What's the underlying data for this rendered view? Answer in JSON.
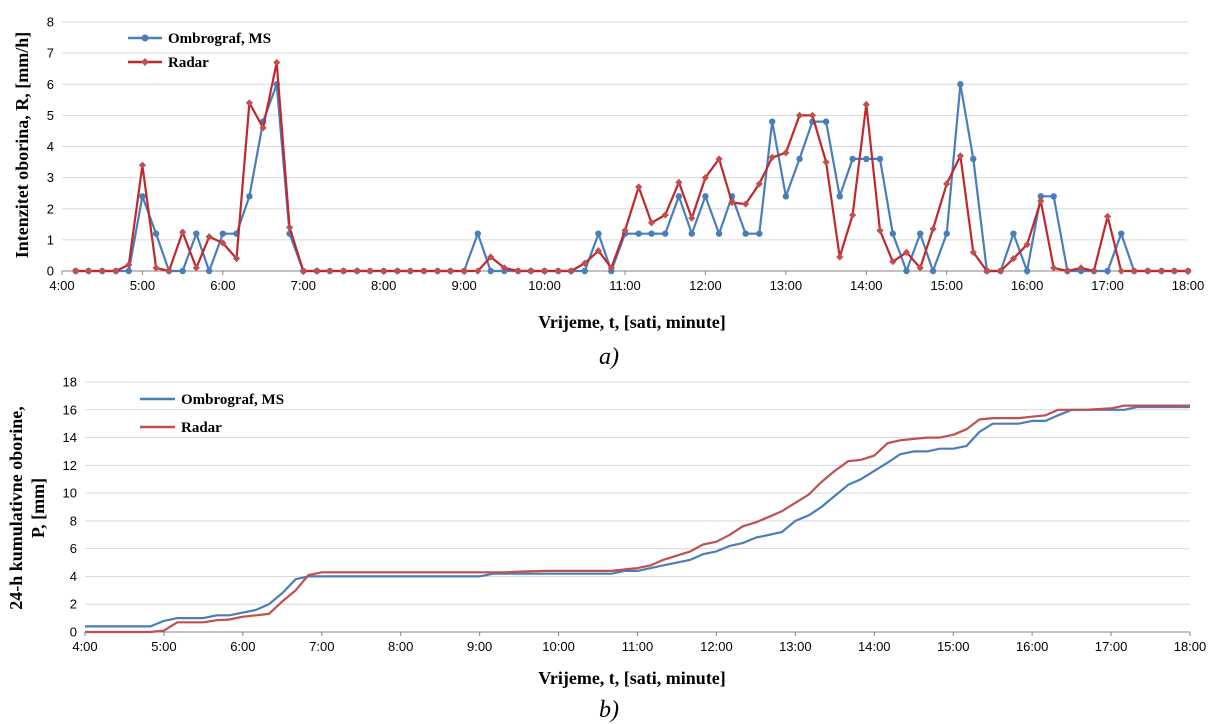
{
  "chart_data": [
    {
      "type": "line",
      "panel_label": "a)",
      "xlabel": "Vrijeme, t, [sati, minute]",
      "ylabel": "Intenzitet oborina, R, [mm/h]",
      "ylim": [
        0,
        8
      ],
      "y_ticks": [
        "0",
        "1",
        "2",
        "3",
        "4",
        "5",
        "6",
        "7",
        "8"
      ],
      "x_ticks": [
        "4:00",
        "5:00",
        "6:00",
        "7:00",
        "8:00",
        "9:00",
        "10:00",
        "11:00",
        "12:00",
        "13:00",
        "14:00",
        "15:00",
        "16:00",
        "17:00",
        "18:00"
      ],
      "grid": "horizontal",
      "legend_position": "top-left",
      "x_hours": [
        4.17,
        4.33,
        4.5,
        4.67,
        4.83,
        5,
        5.17,
        5.33,
        5.5,
        5.67,
        5.83,
        6,
        6.17,
        6.33,
        6.5,
        6.67,
        6.83,
        7,
        7.17,
        7.33,
        7.5,
        7.67,
        7.83,
        8,
        8.17,
        8.33,
        8.5,
        8.67,
        8.83,
        9,
        9.17,
        9.33,
        9.5,
        9.67,
        9.83,
        10,
        10.17,
        10.33,
        10.5,
        10.67,
        10.83,
        11,
        11.17,
        11.33,
        11.5,
        11.67,
        11.83,
        12,
        12.17,
        12.33,
        12.5,
        12.67,
        12.83,
        13,
        13.17,
        13.33,
        13.5,
        13.67,
        13.83,
        14,
        14.17,
        14.33,
        14.5,
        14.67,
        14.83,
        15,
        15.17,
        15.33,
        15.5,
        15.67,
        15.83,
        16,
        16.17,
        16.33,
        16.5,
        16.67,
        16.83,
        17,
        17.17,
        17.33,
        17.5,
        17.67,
        17.83,
        18
      ],
      "series": [
        {
          "name": "Ombrograf, MS",
          "color": "#4A7EBB",
          "marker": "circle",
          "values": [
            0,
            0,
            0,
            0,
            0,
            2.4,
            1.2,
            0,
            0,
            1.2,
            0,
            1.2,
            1.2,
            2.4,
            4.8,
            6,
            1.2,
            0,
            0,
            0,
            0,
            0,
            0,
            0,
            0,
            0,
            0,
            0,
            0,
            0,
            1.2,
            0,
            0,
            0,
            0,
            0,
            0,
            0,
            0,
            1.2,
            0,
            1.2,
            1.2,
            1.2,
            1.2,
            2.4,
            1.2,
            2.4,
            1.2,
            2.4,
            1.2,
            1.2,
            4.8,
            2.4,
            3.6,
            4.8,
            4.8,
            2.4,
            3.6,
            3.6,
            3.6,
            1.2,
            0,
            1.2,
            0,
            1.2,
            6,
            3.6,
            0,
            0,
            1.2,
            0,
            2.4,
            2.4,
            0,
            0,
            0,
            0,
            1.2,
            0,
            0,
            0,
            0,
            0
          ]
        },
        {
          "name": "Radar",
          "color": "#C0282D",
          "marker": "diamond",
          "values": [
            0,
            0,
            0,
            0,
            0.2,
            3.4,
            0.1,
            0,
            1.25,
            0.1,
            1.1,
            0.9,
            0.4,
            5.4,
            4.6,
            6.7,
            1.4,
            0,
            0,
            0,
            0,
            0,
            0,
            0,
            0,
            0,
            0,
            0,
            0,
            0,
            0,
            0.45,
            0.1,
            0,
            0,
            0,
            0,
            0,
            0.25,
            0.65,
            0.1,
            1.3,
            2.7,
            1.55,
            1.8,
            2.85,
            1.7,
            3.0,
            3.6,
            2.2,
            2.15,
            2.8,
            3.65,
            3.8,
            5.0,
            5.0,
            3.5,
            0.45,
            1.8,
            5.35,
            1.3,
            0.3,
            0.6,
            0.1,
            1.35,
            2.8,
            3.7,
            0.6,
            0,
            0,
            0.4,
            0.85,
            2.25,
            0.1,
            0,
            0.1,
            0,
            1.75,
            0,
            0,
            0,
            0,
            0,
            0
          ]
        }
      ]
    },
    {
      "type": "line",
      "panel_label": "b)",
      "xlabel": "Vrijeme, t, [sati, minute]",
      "ylabel": "24-h kumulativne oborine, P, [mm]",
      "ylabel_lines": [
        "24-h kumulativne oborine,",
        "P, [mm]"
      ],
      "ylim": [
        0,
        18
      ],
      "y_ticks": [
        "0",
        "2",
        "4",
        "6",
        "8",
        "10",
        "12",
        "14",
        "16",
        "18"
      ],
      "x_ticks": [
        "4:00",
        "5:00",
        "6:00",
        "7:00",
        "8:00",
        "9:00",
        "10:00",
        "11:00",
        "12:00",
        "13:00",
        "14:00",
        "15:00",
        "16:00",
        "17:00",
        "18:00"
      ],
      "grid": "horizontal",
      "legend_position": "top-left",
      "series": [
        {
          "name": "Ombrograf, MS",
          "color": "#4A7EBB",
          "points": [
            [
              4,
              0.4
            ],
            [
              4.83,
              0.4
            ],
            [
              5,
              0.8
            ],
            [
              5.17,
              1.0
            ],
            [
              5.5,
              1.0
            ],
            [
              5.67,
              1.2
            ],
            [
              5.83,
              1.2
            ],
            [
              6,
              1.4
            ],
            [
              6.17,
              1.6
            ],
            [
              6.33,
              2.0
            ],
            [
              6.5,
              2.8
            ],
            [
              6.67,
              3.8
            ],
            [
              6.83,
              4.0
            ],
            [
              7,
              4.0
            ],
            [
              9,
              4.0
            ],
            [
              9.17,
              4.2
            ],
            [
              10.67,
              4.2
            ],
            [
              10.83,
              4.4
            ],
            [
              11,
              4.4
            ],
            [
              11.17,
              4.6
            ],
            [
              11.33,
              4.8
            ],
            [
              11.5,
              5.0
            ],
            [
              11.67,
              5.2
            ],
            [
              11.83,
              5.6
            ],
            [
              12,
              5.8
            ],
            [
              12.17,
              6.2
            ],
            [
              12.33,
              6.4
            ],
            [
              12.5,
              6.8
            ],
            [
              12.67,
              7.0
            ],
            [
              12.83,
              7.2
            ],
            [
              13,
              8.0
            ],
            [
              13.17,
              8.4
            ],
            [
              13.33,
              9.0
            ],
            [
              13.5,
              9.8
            ],
            [
              13.67,
              10.6
            ],
            [
              13.83,
              11.0
            ],
            [
              14,
              11.6
            ],
            [
              14.17,
              12.2
            ],
            [
              14.33,
              12.8
            ],
            [
              14.5,
              13.0
            ],
            [
              14.67,
              13.0
            ],
            [
              14.83,
              13.2
            ],
            [
              15,
              13.2
            ],
            [
              15.17,
              13.4
            ],
            [
              15.33,
              14.4
            ],
            [
              15.5,
              15.0
            ],
            [
              15.83,
              15.0
            ],
            [
              16,
              15.2
            ],
            [
              16.17,
              15.2
            ],
            [
              16.33,
              15.6
            ],
            [
              16.5,
              16.0
            ],
            [
              17.17,
              16.0
            ],
            [
              17.33,
              16.2
            ],
            [
              18,
              16.2
            ]
          ]
        },
        {
          "name": "Radar",
          "color": "#C0504D",
          "points": [
            [
              4,
              0
            ],
            [
              4.83,
              0
            ],
            [
              5,
              0.1
            ],
            [
              5.17,
              0.7
            ],
            [
              5.5,
              0.7
            ],
            [
              5.67,
              0.85
            ],
            [
              5.83,
              0.9
            ],
            [
              6,
              1.1
            ],
            [
              6.17,
              1.2
            ],
            [
              6.33,
              1.3
            ],
            [
              6.5,
              2.2
            ],
            [
              6.67,
              3.0
            ],
            [
              6.83,
              4.1
            ],
            [
              7,
              4.3
            ],
            [
              9,
              4.3
            ],
            [
              9.33,
              4.3
            ],
            [
              9.5,
              4.35
            ],
            [
              9.83,
              4.4
            ],
            [
              10.67,
              4.4
            ],
            [
              10.83,
              4.5
            ],
            [
              11,
              4.6
            ],
            [
              11.17,
              4.8
            ],
            [
              11.33,
              5.2
            ],
            [
              11.5,
              5.5
            ],
            [
              11.67,
              5.8
            ],
            [
              11.83,
              6.3
            ],
            [
              12,
              6.5
            ],
            [
              12.17,
              7.0
            ],
            [
              12.33,
              7.6
            ],
            [
              12.5,
              7.9
            ],
            [
              12.67,
              8.3
            ],
            [
              12.83,
              8.7
            ],
            [
              13,
              9.3
            ],
            [
              13.17,
              9.9
            ],
            [
              13.33,
              10.8
            ],
            [
              13.5,
              11.6
            ],
            [
              13.67,
              12.3
            ],
            [
              13.83,
              12.4
            ],
            [
              14,
              12.7
            ],
            [
              14.17,
              13.6
            ],
            [
              14.33,
              13.8
            ],
            [
              14.5,
              13.9
            ],
            [
              14.67,
              14.0
            ],
            [
              14.83,
              14.0
            ],
            [
              15,
              14.2
            ],
            [
              15.17,
              14.6
            ],
            [
              15.33,
              15.3
            ],
            [
              15.5,
              15.4
            ],
            [
              15.83,
              15.4
            ],
            [
              16,
              15.5
            ],
            [
              16.17,
              15.6
            ],
            [
              16.33,
              16.0
            ],
            [
              16.5,
              16.0
            ],
            [
              16.67,
              16.0
            ],
            [
              16.83,
              16.05
            ],
            [
              17,
              16.1
            ],
            [
              17.17,
              16.3
            ],
            [
              18,
              16.3
            ]
          ]
        }
      ]
    }
  ]
}
